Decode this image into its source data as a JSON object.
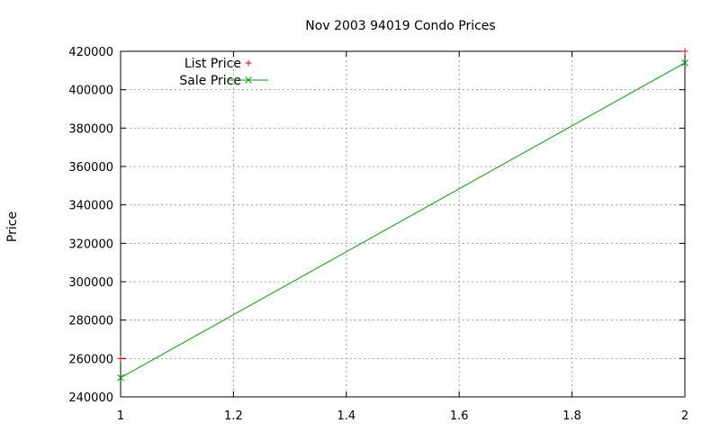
{
  "chart_data": {
    "type": "line",
    "title": "Nov 2003 94019 Condo Prices",
    "xlabel": "",
    "ylabel": "Price",
    "xlim": [
      1,
      2
    ],
    "ylim": [
      240000,
      420000
    ],
    "xticks": [
      1,
      1.2,
      1.4,
      1.6,
      1.8,
      2
    ],
    "xtick_labels": [
      "1",
      "1.2",
      "1.4",
      "1.6",
      "1.8",
      "2"
    ],
    "yticks": [
      240000,
      260000,
      280000,
      300000,
      320000,
      340000,
      360000,
      380000,
      400000,
      420000
    ],
    "ytick_labels": [
      "240000",
      "260000",
      "280000",
      "300000",
      "320000",
      "340000",
      "360000",
      "380000",
      "400000",
      "420000"
    ],
    "grid": true,
    "legend_position": "top-left",
    "series": [
      {
        "name": "List Price",
        "style": "points",
        "marker": "plus",
        "color": "#ff0000",
        "x": [
          1,
          2
        ],
        "y": [
          260000,
          420000
        ]
      },
      {
        "name": "Sale Price",
        "style": "linespoints",
        "marker": "cross",
        "color": "#00a000",
        "x": [
          1,
          2
        ],
        "y": [
          250000,
          414000
        ]
      }
    ]
  }
}
